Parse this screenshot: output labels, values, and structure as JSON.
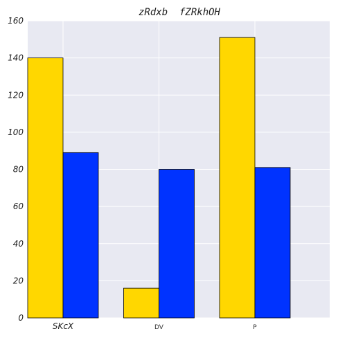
{
  "chart_data": {
    "type": "bar",
    "title": "zRdxb  fZRkhOH",
    "xlabel": "",
    "ylabel": "",
    "categories": [
      "SKcX",
      "DV",
      "P"
    ],
    "ylim": [
      0,
      160
    ],
    "yticks": [
      0,
      20,
      40,
      60,
      80,
      100,
      120,
      140,
      160
    ],
    "grid": true,
    "legend": "none",
    "series": [
      {
        "values": [
          140,
          16,
          151
        ],
        "color": "#FFD700"
      },
      {
        "values": [
          89,
          80,
          81
        ],
        "color": "#0033FF"
      }
    ],
    "background": "#E8E9F2",
    "grid_color": "#FFFFFF"
  }
}
